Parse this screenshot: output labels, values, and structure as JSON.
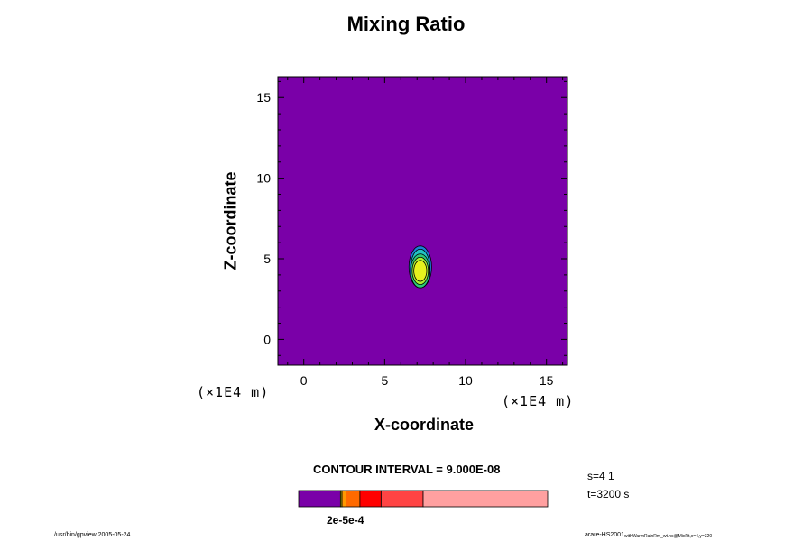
{
  "chart_data": {
    "type": "heatmap",
    "title": "Mixing Ratio",
    "xlabel": "X-coordinate",
    "ylabel": "Z-coordinate",
    "x_unit": "(×1E4 m)",
    "z_unit": "(×1E4 m)",
    "xlim": [
      -1.6,
      16.3
    ],
    "ylim": [
      -1.6,
      16.3
    ],
    "x_ticks": [
      "0",
      "5",
      "10",
      "15"
    ],
    "y_ticks": [
      "0",
      "5",
      "10",
      "15"
    ],
    "background_color": "#7a00a8",
    "feature": {
      "center": [
        7.2,
        4.6
      ],
      "layers": [
        {
          "color": "#1a7fd6",
          "x": [
            6.5,
            7.9
          ],
          "z": [
            3.2,
            5.8
          ]
        },
        {
          "color": "#22c2c2",
          "x": [
            6.6,
            7.8
          ],
          "z": [
            3.2,
            5.6
          ]
        },
        {
          "color": "#2ec87a",
          "x": [
            6.6,
            7.8
          ],
          "z": [
            3.2,
            5.3
          ]
        },
        {
          "color": "#aaf030",
          "x": [
            6.7,
            7.7
          ],
          "z": [
            3.4,
            5.1
          ]
        },
        {
          "color": "#e6f21e",
          "x": [
            6.8,
            7.6
          ],
          "z": [
            3.6,
            4.9
          ]
        }
      ]
    },
    "contour_interval": "CONTOUR INTERVAL = 9.000E-08",
    "colorbar": {
      "segments": [
        {
          "color": "#7a00a8",
          "fraction": 0.168
        },
        {
          "color": "#c9b400",
          "fraction": 0.006
        },
        {
          "color": "#ff9900",
          "fraction": 0.016
        },
        {
          "color": "#ff6a00",
          "fraction": 0.056
        },
        {
          "color": "#ff0000",
          "fraction": 0.085
        },
        {
          "color": "#ff4444",
          "fraction": 0.169
        },
        {
          "color": "#ffa0a0",
          "fraction": 0.5
        }
      ],
      "tick_label": "2e-5e-4"
    },
    "info": {
      "s": "s=4 1",
      "t": "t=3200 s"
    },
    "footer_left": "/usr/bin/gpview 2005-05-24",
    "footer_right_main": "arare-HS2001",
    "footer_right_sub": "withWarmRainRm_wt.nc@MixRt,x=4,y=320"
  }
}
